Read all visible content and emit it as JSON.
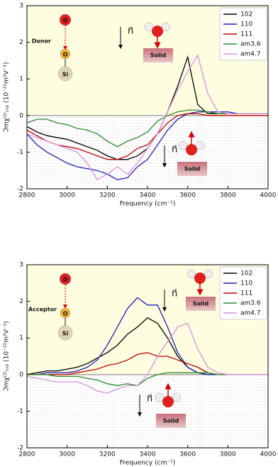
{
  "chart_data": [
    {
      "type": "line",
      "legend": "upper right",
      "xlabel": "Frequency (cm⁻¹)",
      "ylabel": "ℑmχ⁽²⁾ₛₛₚ (10⁻²²m²V⁻¹)",
      "xlim": [
        2800,
        4000
      ],
      "ylim": [
        -2,
        3
      ],
      "xticks": [
        2800,
        3000,
        3200,
        3400,
        3600,
        3800,
        4000
      ],
      "yticks": [
        -2,
        -1,
        0,
        1,
        2,
        3
      ],
      "x": [
        2800,
        2850,
        2900,
        2950,
        3000,
        3050,
        3100,
        3150,
        3200,
        3250,
        3300,
        3350,
        3400,
        3450,
        3500,
        3550,
        3600,
        3650,
        3700,
        3750,
        3800,
        3850,
        3900,
        3950,
        4000
      ],
      "series": [
        {
          "name": "102",
          "color": "#000000",
          "values": [
            -0.3,
            -0.45,
            -0.55,
            -0.6,
            -0.65,
            -0.75,
            -0.85,
            -0.95,
            -1.1,
            -1.2,
            -1.2,
            -1.1,
            -0.9,
            -0.5,
            0.1,
            0.8,
            1.6,
            0.3,
            0.05,
            0.05,
            0.05,
            0.05,
            0.05,
            0.05,
            0.05
          ]
        },
        {
          "name": "110",
          "color": "#1f1fb4",
          "values": [
            -0.5,
            -0.8,
            -1.0,
            -1.15,
            -1.3,
            -1.4,
            -1.45,
            -1.5,
            -1.6,
            -1.75,
            -1.7,
            -1.4,
            -1.2,
            -0.8,
            -0.4,
            -0.1,
            0.05,
            0.1,
            0.1,
            0.1,
            0.1,
            0.05,
            0.05,
            0.05,
            0.05
          ]
        },
        {
          "name": "111",
          "color": "#c00000",
          "values": [
            -0.4,
            -0.55,
            -0.7,
            -0.8,
            -0.85,
            -0.9,
            -1.0,
            -1.1,
            -1.2,
            -1.2,
            -1.1,
            -0.9,
            -0.8,
            -0.5,
            -0.2,
            0.0,
            0.05,
            0.05,
            0.0,
            0.0,
            0.0,
            0.0,
            0.0,
            0.0,
            0.0
          ]
        },
        {
          "name": "am3.6",
          "color": "#2a8a2a",
          "values": [
            -0.2,
            -0.1,
            -0.1,
            -0.2,
            -0.25,
            -0.35,
            -0.4,
            -0.5,
            -0.7,
            -0.85,
            -0.7,
            -0.6,
            -0.45,
            -0.15,
            0.0,
            0.1,
            0.15,
            0.15,
            0.1,
            0.05,
            0.05,
            0.05,
            0.05,
            0.05,
            0.05
          ]
        },
        {
          "name": "am4.7",
          "color": "#d98ee0",
          "values": [
            -0.5,
            -0.6,
            -0.7,
            -0.8,
            -0.9,
            -1.0,
            -1.3,
            -1.75,
            -1.6,
            -1.4,
            -1.6,
            -1.3,
            -0.9,
            -0.5,
            0.1,
            0.7,
            1.2,
            1.65,
            0.6,
            0.1,
            0.05,
            0.05,
            0.05,
            0.05,
            0.05
          ]
        }
      ],
      "annotations": [
        "O",
        "O",
        "Si",
        "Donor",
        "n⃗",
        "Solid",
        "n⃗",
        "Solid"
      ]
    },
    {
      "type": "line",
      "legend": "upper right",
      "xlabel": "Frequency (cm⁻¹)",
      "ylabel": "ℑmχ⁽²⁾ₛₛₚ (10⁻²²m²V⁻¹)",
      "xlim": [
        2800,
        4000
      ],
      "ylim": [
        -2,
        3
      ],
      "xticks": [
        2800,
        3000,
        3200,
        3400,
        3600,
        3800,
        4000
      ],
      "yticks": [
        -2,
        -1,
        0,
        1,
        2,
        3
      ],
      "x": [
        2800,
        2850,
        2900,
        2950,
        3000,
        3050,
        3100,
        3150,
        3200,
        3250,
        3300,
        3350,
        3400,
        3450,
        3500,
        3550,
        3600,
        3650,
        3700,
        3750,
        3800,
        3850,
        3900,
        3950,
        4000
      ],
      "series": [
        {
          "name": "102",
          "color": "#000000",
          "values": [
            0.0,
            0.05,
            0.1,
            0.1,
            0.15,
            0.2,
            0.3,
            0.45,
            0.6,
            0.8,
            1.1,
            1.3,
            1.55,
            1.4,
            1.0,
            0.5,
            0.2,
            0.05,
            0.0,
            0.0,
            0.0,
            0.0,
            0.0,
            0.0,
            0.0
          ]
        },
        {
          "name": "110",
          "color": "#1f1fb4",
          "values": [
            0.0,
            0.0,
            0.05,
            0.05,
            0.05,
            0.1,
            0.2,
            0.4,
            0.8,
            1.3,
            1.8,
            2.1,
            1.9,
            1.9,
            1.3,
            0.6,
            0.2,
            0.05,
            0.0,
            0.0,
            0.0,
            0.0,
            0.0,
            0.0,
            0.0
          ]
        },
        {
          "name": "111",
          "color": "#c00000",
          "values": [
            0.0,
            0.0,
            0.0,
            0.0,
            0.0,
            0.05,
            0.1,
            0.15,
            0.25,
            0.3,
            0.4,
            0.55,
            0.6,
            0.5,
            0.5,
            0.4,
            0.3,
            0.2,
            0.05,
            0.0,
            0.0,
            0.0,
            0.0,
            0.0,
            0.0
          ]
        },
        {
          "name": "am3.6",
          "color": "#2a8a2a",
          "values": [
            0.0,
            0.0,
            0.0,
            -0.05,
            -0.05,
            -0.05,
            -0.1,
            -0.15,
            -0.25,
            -0.3,
            -0.25,
            -0.3,
            -0.1,
            0.0,
            0.05,
            0.05,
            0.05,
            0.05,
            0.05,
            0.0,
            0.0,
            0.0,
            0.0,
            0.0,
            0.0
          ]
        },
        {
          "name": "am4.7",
          "color": "#d98ee0",
          "values": [
            -0.05,
            -0.1,
            -0.15,
            -0.2,
            -0.2,
            -0.2,
            -0.3,
            -0.45,
            -0.5,
            -0.4,
            -0.3,
            -0.3,
            0.0,
            0.5,
            0.9,
            1.3,
            1.4,
            0.7,
            0.2,
            0.05,
            0.0,
            0.0,
            0.0,
            0.0,
            0.0
          ]
        }
      ],
      "annotations": [
        "O",
        "O",
        "Si",
        "Acceptor",
        "n⃗",
        "Solid",
        "n⃗",
        "Solid"
      ]
    }
  ]
}
